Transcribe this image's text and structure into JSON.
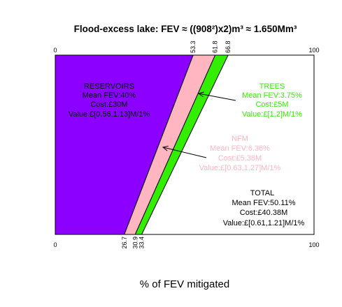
{
  "chart_data": {
    "type": "area",
    "title": "Flood-excess lake: FEV ≈ ((908²)x2)m³ ≈ 1.650Mm³",
    "xlabel": "% of FEV mitigated",
    "xlim": [
      0,
      100
    ],
    "top_ticks": [
      "0",
      "100"
    ],
    "bottom_ticks": [
      "0",
      "100"
    ],
    "series": [
      {
        "name": "RESERVOIRS",
        "color": "#8b00ff",
        "top": [
          0,
          53.3
        ],
        "bottom": [
          0,
          26.7
        ],
        "lines": [
          "RESERVOIRS",
          "Mean FEV:40%",
          "Cost:£30M",
          "Value:£[0.56,1.13]M/1%"
        ]
      },
      {
        "name": "NFM",
        "color": "#ffb6c1",
        "top": [
          53.3,
          61.8
        ],
        "bottom": [
          26.7,
          30.9
        ],
        "lines": [
          "NFM",
          "Mean FEV:6.36%",
          "Cost:£5.38M",
          "Value:£[0.63,1.27]M/1%"
        ]
      },
      {
        "name": "TREES",
        "color": "#33ee00",
        "top": [
          61.8,
          66.8
        ],
        "bottom": [
          30.9,
          33.4
        ],
        "lines": [
          "TREES",
          "Mean FEV:3.75%",
          "Cost:£5M",
          "Value:£[1,2]M/1%"
        ]
      }
    ],
    "boundary_labels_top": [
      "53.3",
      "61.8",
      "66.8"
    ],
    "boundary_labels_bottom": [
      "26.7",
      "30.9",
      "33.4"
    ],
    "total": {
      "lines": [
        "TOTAL",
        "Mean FEV:50.11%",
        "Cost:£40.38M",
        "Value:£[0.61,1.21]M/1%"
      ]
    }
  }
}
